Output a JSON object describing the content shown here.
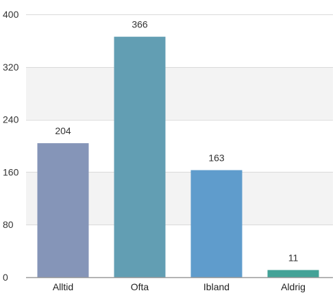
{
  "chart_data": {
    "type": "bar",
    "categories": [
      "Alltid",
      "Ofta",
      "Ibland",
      "Aldrig"
    ],
    "values": [
      204,
      366,
      163,
      11
    ],
    "ylim": [
      0,
      400
    ],
    "yticks": [
      "0",
      "80",
      "160",
      "240",
      "320",
      "400"
    ],
    "data_labels": [
      "204",
      "366",
      "163",
      "11"
    ],
    "grid": true,
    "colors": {
      "bars": [
        "#8595b8",
        "#629eb3",
        "#5f9ccc",
        "#43a297"
      ],
      "band_alt": "#f3f3f3",
      "band": "#ffffff",
      "grid": "#d9d9d9",
      "axis": "#999999"
    }
  }
}
